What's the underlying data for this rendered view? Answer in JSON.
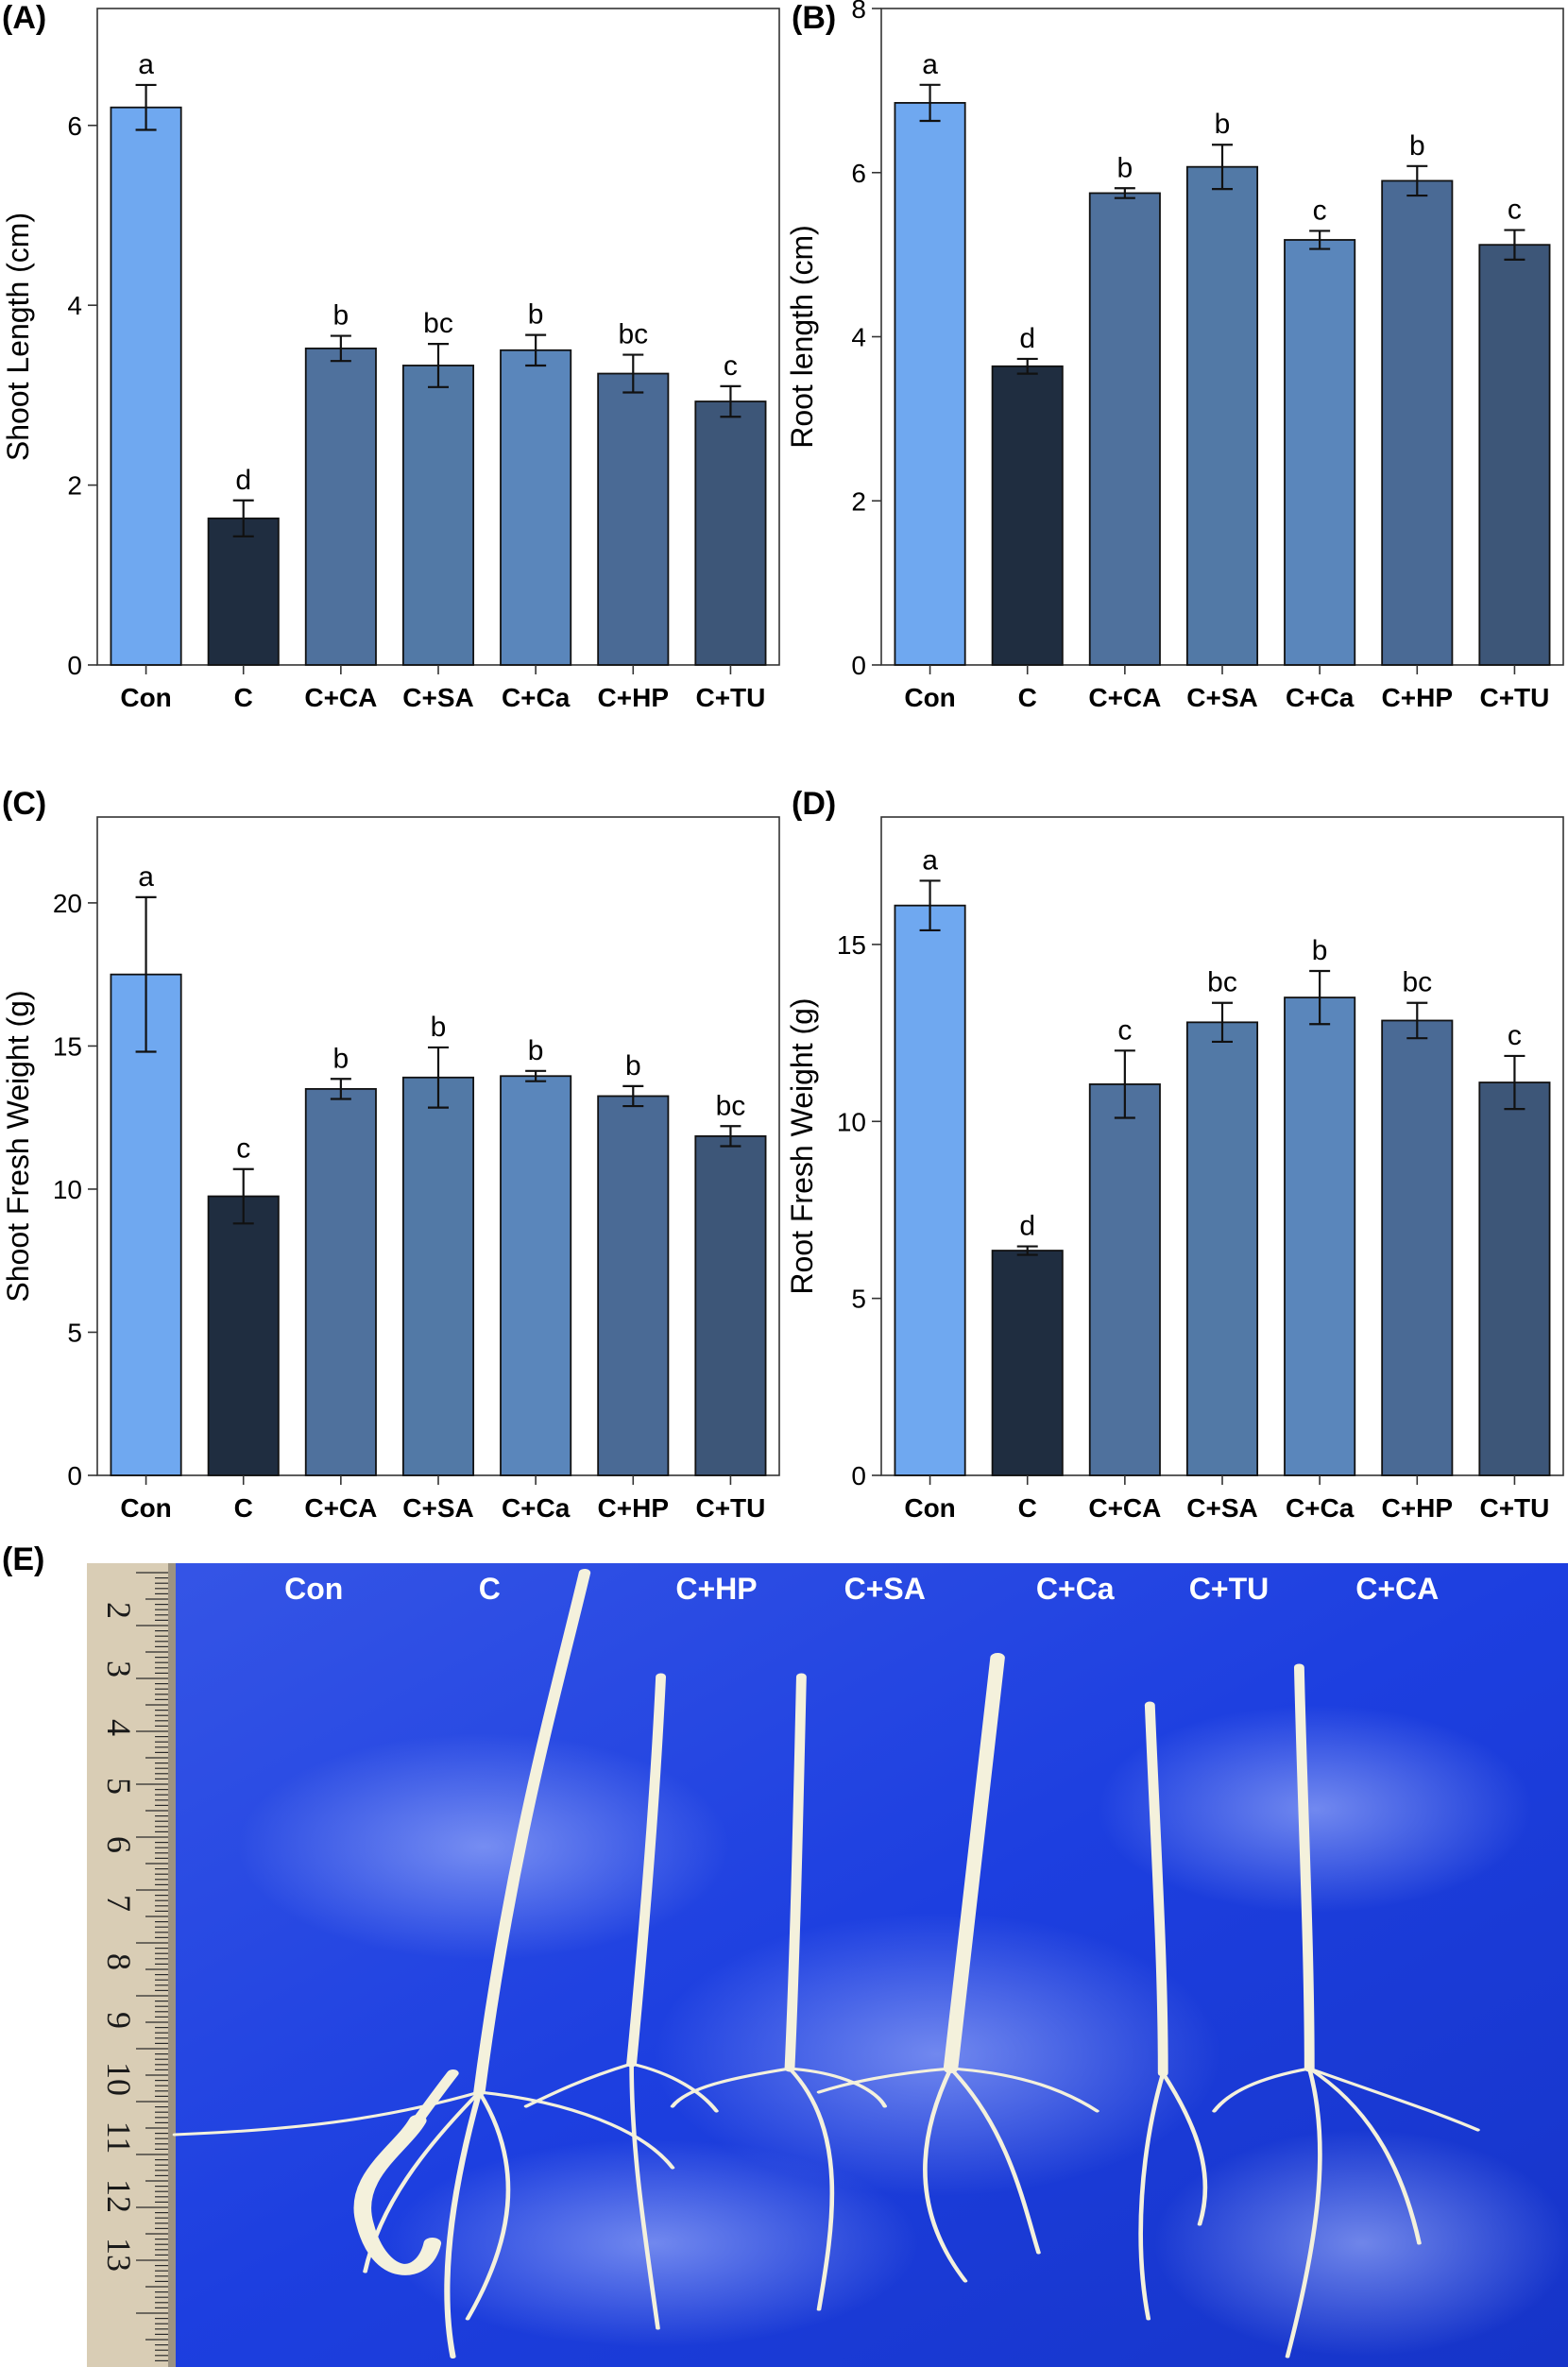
{
  "panel_labels": {
    "a": "(A)",
    "b": "(B)",
    "c": "(C)",
    "d": "(D)",
    "e": "(E)"
  },
  "colors": {
    "Con": "#6fa8f0",
    "C": "#1f2d40",
    "C+CA": "#4f719d",
    "C+SA": "#5279a6",
    "C+Ca": "#5a86bb",
    "C+HP": "#4a6a95",
    "C+TU": "#3d5678",
    "photo_bg": "#1d3fe0",
    "ruler": "#d9cdb5",
    "seedling": "#f4f1dc"
  },
  "chart_data": [
    {
      "id": "A",
      "type": "bar",
      "title": "",
      "xlabel": "",
      "ylabel": "Shoot Length (cm)",
      "categories": [
        "Con",
        "C",
        "C+CA",
        "C+SA",
        "C+Ca",
        "C+HP",
        "C+TU"
      ],
      "values": [
        6.2,
        1.63,
        3.52,
        3.33,
        3.5,
        3.24,
        2.93
      ],
      "errors": [
        0.25,
        0.2,
        0.14,
        0.24,
        0.17,
        0.21,
        0.17
      ],
      "letters": [
        "a",
        "d",
        "b",
        "bc",
        "b",
        "bc",
        "c"
      ],
      "ylim": [
        0,
        7.3
      ],
      "yticks": [
        0,
        2,
        4,
        6
      ],
      "grid": false
    },
    {
      "id": "B",
      "type": "bar",
      "title": "",
      "xlabel": "",
      "ylabel": "Root length (cm)",
      "categories": [
        "Con",
        "C",
        "C+CA",
        "C+SA",
        "C+Ca",
        "C+HP",
        "C+TU"
      ],
      "values": [
        6.85,
        3.64,
        5.75,
        6.07,
        5.18,
        5.9,
        5.12
      ],
      "errors": [
        0.22,
        0.09,
        0.06,
        0.27,
        0.11,
        0.18,
        0.18
      ],
      "letters": [
        "a",
        "d",
        "b",
        "b",
        "c",
        "b",
        "c"
      ],
      "ylim": [
        0,
        8
      ],
      "yticks": [
        0,
        2,
        4,
        6,
        8
      ],
      "grid": false
    },
    {
      "id": "C",
      "type": "bar",
      "title": "",
      "xlabel": "",
      "ylabel": "Shoot Fresh Weight (g)",
      "categories": [
        "Con",
        "C",
        "C+CA",
        "C+SA",
        "C+Ca",
        "C+HP",
        "C+TU"
      ],
      "values": [
        17.5,
        9.75,
        13.5,
        13.9,
        13.95,
        13.25,
        11.85
      ],
      "errors": [
        2.7,
        0.95,
        0.35,
        1.05,
        0.18,
        0.35,
        0.35
      ],
      "letters": [
        "a",
        "c",
        "b",
        "b",
        "b",
        "b",
        "bc"
      ],
      "ylim": [
        0,
        23
      ],
      "yticks": [
        0,
        5,
        10,
        15,
        20
      ],
      "grid": false
    },
    {
      "id": "D",
      "type": "bar",
      "title": "",
      "xlabel": "",
      "ylabel": "Root Fresh Weight (g)",
      "categories": [
        "Con",
        "C",
        "C+CA",
        "C+SA",
        "C+Ca",
        "C+HP",
        "C+TU"
      ],
      "values": [
        16.1,
        6.35,
        11.05,
        12.8,
        13.5,
        12.85,
        11.1
      ],
      "errors": [
        0.7,
        0.12,
        0.95,
        0.55,
        0.75,
        0.5,
        0.75
      ],
      "letters": [
        "a",
        "d",
        "c",
        "bc",
        "b",
        "bc",
        "c"
      ],
      "ylim": [
        0,
        18.6
      ],
      "yticks": [
        0,
        5,
        10,
        15
      ],
      "grid": false
    }
  ],
  "photo": {
    "labels": [
      "Con",
      "C",
      "C+HP",
      "C+SA",
      "C+Ca",
      "C+TU",
      "C+CA"
    ],
    "ruler_numbers": [
      "2",
      "3",
      "4",
      "5",
      "6",
      "7",
      "8",
      "9",
      "10",
      "11",
      "12",
      "13"
    ]
  }
}
